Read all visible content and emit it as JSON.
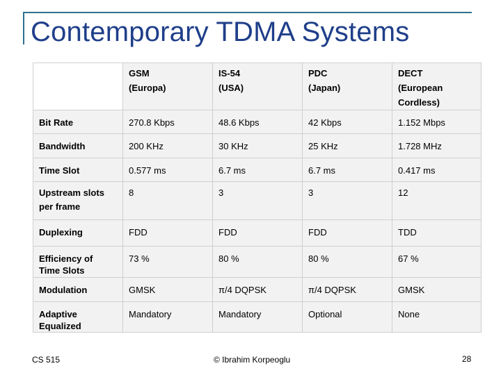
{
  "slide": {
    "title": "Contemporary TDMA Systems",
    "footer_left": "CS 515",
    "footer_center": "© Ibrahim Korpeoglu",
    "page_number": "28",
    "accent_color": "#1f3f8a",
    "frame_color": "#2f6f8f"
  },
  "table": {
    "columns": [
      {
        "line1": "GSM",
        "line2": "(Europa)",
        "line3": ""
      },
      {
        "line1": "IS-54",
        "line2": "(USA)",
        "line3": ""
      },
      {
        "line1": "PDC",
        "line2": "(Japan)",
        "line3": ""
      },
      {
        "line1": "DECT",
        "line2": "(European",
        "line3": "Cordless)"
      }
    ],
    "rows": [
      {
        "label_1": "Bit Rate",
        "label_2": "",
        "values": [
          "270.8 Kbps",
          "48.6 Kbps",
          "42 Kbps",
          "1.152 Mbps"
        ]
      },
      {
        "label_1": "Bandwidth",
        "label_2": "",
        "values": [
          "200 KHz",
          "30 KHz",
          "25 KHz",
          "1.728 MHz"
        ]
      },
      {
        "label_1": "Time Slot",
        "label_2": "",
        "values": [
          "0.577 ms",
          "6.7 ms",
          "6.7 ms",
          "0.417 ms"
        ]
      },
      {
        "label_1": "Upstream slots",
        "label_2": "per frame",
        "values": [
          "8",
          "3",
          "3",
          "12"
        ]
      },
      {
        "label_1": "Duplexing",
        "label_2": "",
        "values": [
          "FDD",
          "FDD",
          "FDD",
          "TDD"
        ]
      },
      {
        "label_1": "Efficiency of",
        "label_2": "Time Slots",
        "values": [
          "73 %",
          "80 %",
          "80 %",
          "67 %"
        ]
      },
      {
        "label_1": "Modulation",
        "label_2": "",
        "values": [
          "GMSK",
          "π/4 DQPSK",
          "π/4 DQPSK",
          "GMSK"
        ]
      },
      {
        "label_1": "Adaptive",
        "label_2": "Equalized",
        "values": [
          "Mandatory",
          "Mandatory",
          "Optional",
          "None"
        ]
      }
    ]
  }
}
